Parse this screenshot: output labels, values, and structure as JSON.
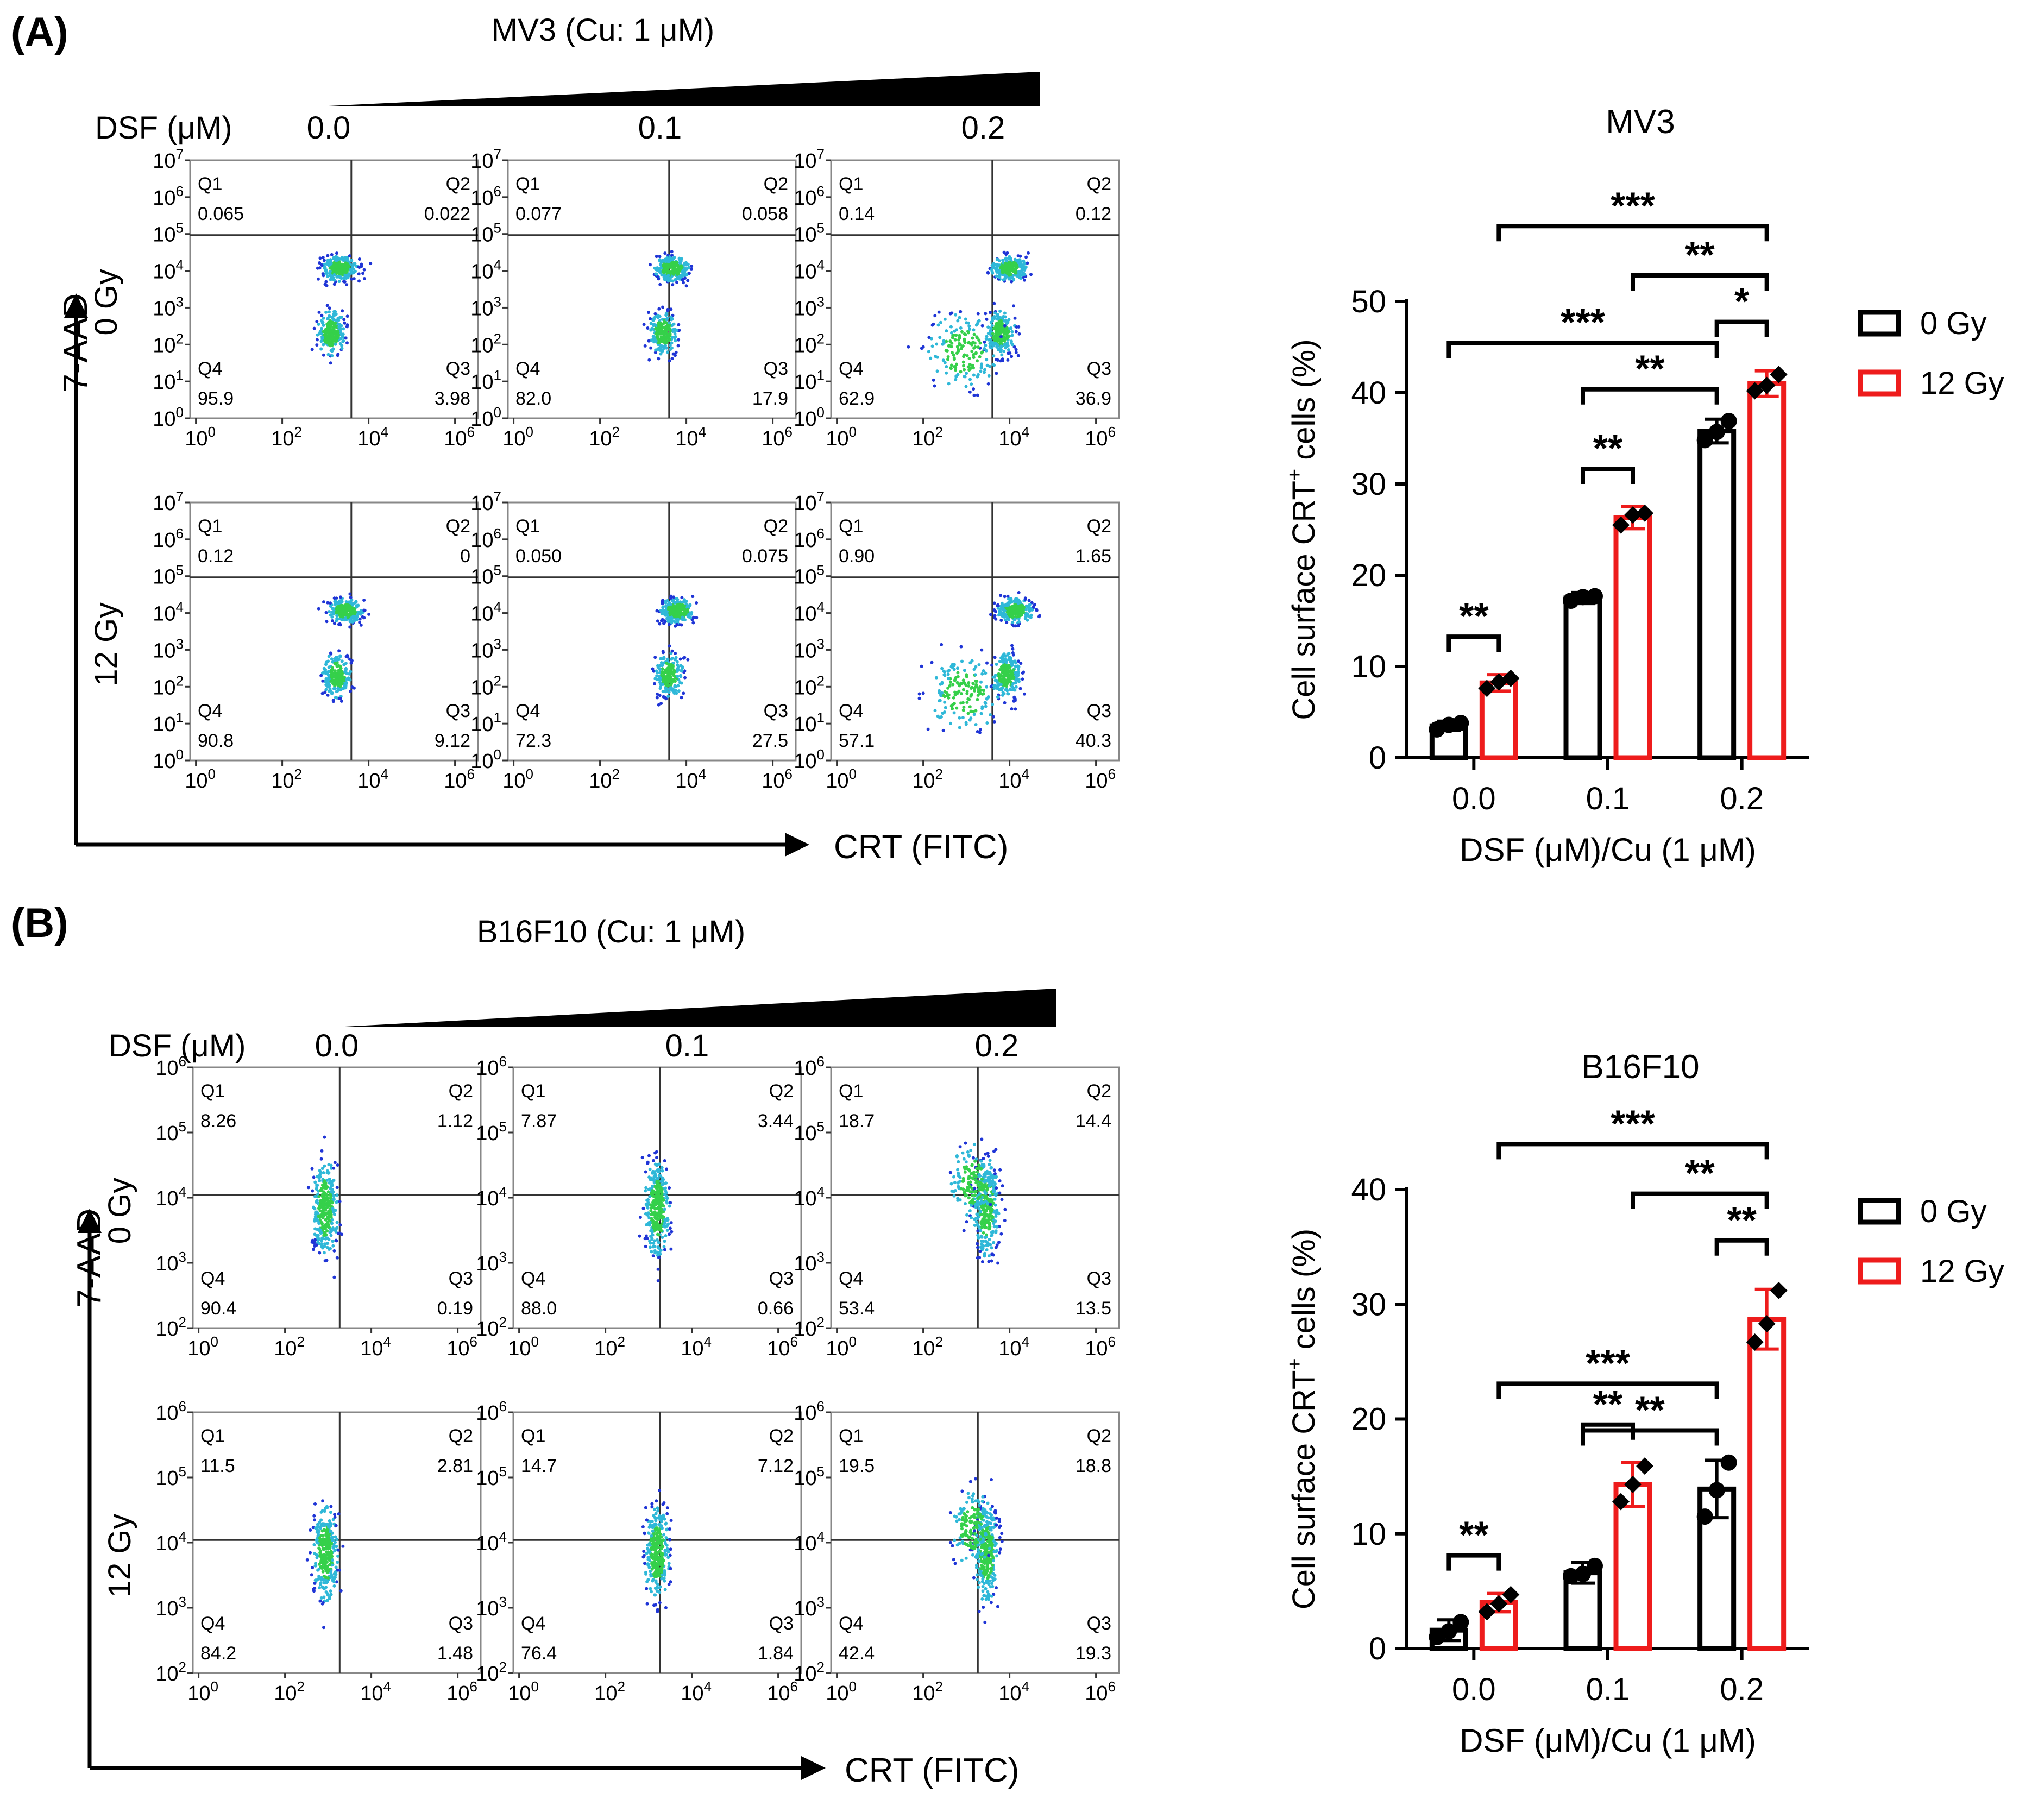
{
  "panels": [
    {
      "id": "A",
      "label": "(A)",
      "title": "MV3 (Cu: 1 μM)",
      "dsf_label": "DSF (μM)",
      "dsf_levels": [
        "0.0",
        "0.1",
        "0.2"
      ],
      "y_axis_label": "7-AAD",
      "x_axis_label": "CRT (FITC)",
      "row_labels": [
        "0 Gy",
        "12 Gy"
      ],
      "flow_y_ticks": [
        {
          "b": "10",
          "e": "0"
        },
        {
          "b": "10",
          "e": "1"
        },
        {
          "b": "10",
          "e": "2"
        },
        {
          "b": "10",
          "e": "3"
        },
        {
          "b": "10",
          "e": "4"
        },
        {
          "b": "10",
          "e": "5"
        },
        {
          "b": "10",
          "e": "6"
        },
        {
          "b": "10",
          "e": "7"
        }
      ],
      "flow_x_ticks": [
        {
          "b": "10",
          "e": "0"
        },
        {
          "b": "10",
          "e": "2"
        },
        {
          "b": "10",
          "e": "4"
        },
        {
          "b": "10",
          "e": "6"
        }
      ],
      "flow_plots": [
        {
          "row": 0,
          "col": 0,
          "q": [
            "0.065",
            "0.022",
            "3.98",
            "95.9"
          ]
        },
        {
          "row": 0,
          "col": 1,
          "q": [
            "0.077",
            "0.058",
            "17.9",
            "82.0"
          ]
        },
        {
          "row": 0,
          "col": 2,
          "q": [
            "0.14",
            "0.12",
            "36.9",
            "62.9"
          ]
        },
        {
          "row": 1,
          "col": 0,
          "q": [
            "0.12",
            "0",
            "9.12",
            "90.8"
          ]
        },
        {
          "row": 1,
          "col": 1,
          "q": [
            "0.050",
            "0.075",
            "27.5",
            "72.3"
          ]
        },
        {
          "row": 1,
          "col": 2,
          "q": [
            "0.90",
            "1.65",
            "40.3",
            "57.1"
          ]
        }
      ]
    },
    {
      "id": "B",
      "label": "(B)",
      "title": "B16F10 (Cu: 1 μM)",
      "dsf_label": "DSF (μM)",
      "dsf_levels": [
        "0.0",
        "0.1",
        "0.2"
      ],
      "y_axis_label": "7-AAD",
      "x_axis_label": "CRT (FITC)",
      "row_labels": [
        "0 Gy",
        "12 Gy"
      ],
      "flow_y_ticks": [
        {
          "b": "10",
          "e": "2"
        },
        {
          "b": "10",
          "e": "3"
        },
        {
          "b": "10",
          "e": "4"
        },
        {
          "b": "10",
          "e": "5"
        },
        {
          "b": "10",
          "e": "6"
        }
      ],
      "flow_x_ticks": [
        {
          "b": "10",
          "e": "0"
        },
        {
          "b": "10",
          "e": "2"
        },
        {
          "b": "10",
          "e": "4"
        },
        {
          "b": "10",
          "e": "6"
        }
      ],
      "flow_plots": [
        {
          "row": 0,
          "col": 0,
          "q": [
            "8.26",
            "1.12",
            "0.19",
            "90.4"
          ]
        },
        {
          "row": 0,
          "col": 1,
          "q": [
            "7.87",
            "3.44",
            "0.66",
            "88.0"
          ]
        },
        {
          "row": 0,
          "col": 2,
          "q": [
            "18.7",
            "14.4",
            "13.5",
            "53.4"
          ]
        },
        {
          "row": 1,
          "col": 0,
          "q": [
            "11.5",
            "2.81",
            "1.48",
            "84.2"
          ]
        },
        {
          "row": 1,
          "col": 1,
          "q": [
            "14.7",
            "7.12",
            "1.84",
            "76.4"
          ]
        },
        {
          "row": 1,
          "col": 2,
          "q": [
            "19.5",
            "18.8",
            "19.3",
            "42.4"
          ]
        }
      ]
    }
  ],
  "quadrant_names": [
    "Q1",
    "Q2",
    "Q3",
    "Q4"
  ],
  "colors": {
    "black": "#000000",
    "red": "#ee1c1c",
    "flow_blue": "#1f35d6",
    "flow_green": "#35d04a",
    "flow_cyan": "#2fb8d8"
  },
  "chart_data": [
    {
      "type": "bar",
      "title": "MV3",
      "categories": [
        "0.0",
        "0.1",
        "0.2"
      ],
      "xlabel": "DSF (μM)/Cu (1 μM)",
      "ylabel_main": "Cell surface CRT",
      "ylabel_sup": "+",
      "ylabel_tail": " cells (%)",
      "ylim": [
        0,
        50
      ],
      "yticks": [
        0,
        10,
        20,
        30,
        40,
        50
      ],
      "legend_position": "top-right",
      "series": [
        {
          "name": "0 Gy",
          "color": "#000000",
          "values": [
            3.5,
            17.5,
            35.8
          ],
          "errors": [
            0.5,
            0.6,
            1.3
          ],
          "points": [
            [
              3.1,
              3.6,
              3.8
            ],
            [
              17.2,
              17.6,
              17.7
            ],
            [
              34.8,
              35.7,
              36.9
            ]
          ]
        },
        {
          "name": "12 Gy",
          "color": "#ee1c1c",
          "values": [
            8.2,
            26.3,
            41.0
          ],
          "errors": [
            0.9,
            1.2,
            1.4
          ],
          "points": [
            [
              7.6,
              8.3,
              8.7
            ],
            [
              25.5,
              26.6,
              26.8
            ],
            [
              40.2,
              40.8,
              42.0
            ]
          ]
        }
      ],
      "significance": [
        {
          "from": [
            0,
            0
          ],
          "to": [
            0,
            1
          ],
          "label": "**",
          "level": 0
        },
        {
          "from": [
            1,
            0
          ],
          "to": [
            1,
            1
          ],
          "label": "**",
          "level": 0
        },
        {
          "from": [
            1,
            0
          ],
          "to": [
            2,
            0
          ],
          "label": "**",
          "level": 1
        },
        {
          "from": [
            0,
            0
          ],
          "to": [
            2,
            0
          ],
          "label": "***",
          "level": 2
        },
        {
          "from": [
            2,
            0
          ],
          "to": [
            2,
            1
          ],
          "label": "*",
          "level": 3
        },
        {
          "from": [
            1,
            1
          ],
          "to": [
            2,
            1
          ],
          "label": "**",
          "level": 4
        },
        {
          "from": [
            0,
            1
          ],
          "to": [
            2,
            1
          ],
          "label": "***",
          "level": 5
        }
      ]
    },
    {
      "type": "bar",
      "title": "B16F10",
      "categories": [
        "0.0",
        "0.1",
        "0.2"
      ],
      "xlabel": "DSF (μM)/Cu (1 μM)",
      "ylabel_main": "Cell surface CRT",
      "ylabel_sup": "+",
      "ylabel_tail": " cells (%)",
      "ylim": [
        0,
        40
      ],
      "yticks": [
        0,
        10,
        20,
        30,
        40
      ],
      "legend_position": "top-right",
      "series": [
        {
          "name": "0 Gy",
          "color": "#000000",
          "values": [
            1.6,
            6.6,
            13.9
          ],
          "errors": [
            0.9,
            0.9,
            2.5
          ],
          "points": [
            [
              1.0,
              1.5,
              2.3
            ],
            [
              6.3,
              6.5,
              7.2
            ],
            [
              11.5,
              13.8,
              16.2
            ]
          ]
        },
        {
          "name": "12 Gy",
          "color": "#ee1c1c",
          "values": [
            4.0,
            14.3,
            28.7
          ],
          "errors": [
            0.8,
            1.9,
            2.6
          ],
          "points": [
            [
              3.2,
              3.9,
              4.7
            ],
            [
              12.8,
              14.3,
              15.9
            ],
            [
              26.7,
              28.3,
              31.2
            ]
          ]
        }
      ],
      "significance": [
        {
          "from": [
            0,
            0
          ],
          "to": [
            0,
            1
          ],
          "label": "**",
          "level": 0
        },
        {
          "from": [
            1,
            0
          ],
          "to": [
            1,
            1
          ],
          "label": "**",
          "level": 0
        },
        {
          "from": [
            1,
            0
          ],
          "to": [
            2,
            0
          ],
          "label": "**",
          "level": 1
        },
        {
          "from": [
            0,
            1
          ],
          "to": [
            2,
            0
          ],
          "label": "***",
          "level": 2
        },
        {
          "from": [
            2,
            0
          ],
          "to": [
            2,
            1
          ],
          "label": "**",
          "level": 3
        },
        {
          "from": [
            1,
            1
          ],
          "to": [
            2,
            1
          ],
          "label": "**",
          "level": 4
        },
        {
          "from": [
            0,
            1
          ],
          "to": [
            2,
            1
          ],
          "label": "***",
          "level": 5
        }
      ]
    }
  ]
}
